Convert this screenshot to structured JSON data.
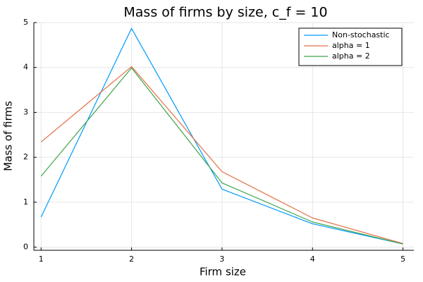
{
  "chart_data": {
    "type": "line",
    "title": "Mass of firms by size, c_f = 10",
    "xlabel": "Firm size",
    "ylabel": "Mass of firms",
    "x": [
      1,
      2,
      3,
      4,
      5
    ],
    "xticks": [
      1,
      2,
      3,
      4,
      5
    ],
    "yticks": [
      0,
      1,
      2,
      3,
      4,
      5
    ],
    "xlim": [
      0.92,
      5.12
    ],
    "ylim": [
      -0.07,
      5.0
    ],
    "grid": true,
    "legend_position": "top-right",
    "series": [
      {
        "name": "Non-stochastic",
        "color": "#009af9",
        "values": [
          0.67,
          4.87,
          1.29,
          0.52,
          0.07
        ]
      },
      {
        "name": "alpha = 1",
        "color": "#e26f46",
        "values": [
          2.34,
          4.02,
          1.68,
          0.65,
          0.08
        ]
      },
      {
        "name": "alpha = 2",
        "color": "#3ea44e",
        "values": [
          1.58,
          3.99,
          1.43,
          0.56,
          0.07
        ]
      }
    ]
  }
}
